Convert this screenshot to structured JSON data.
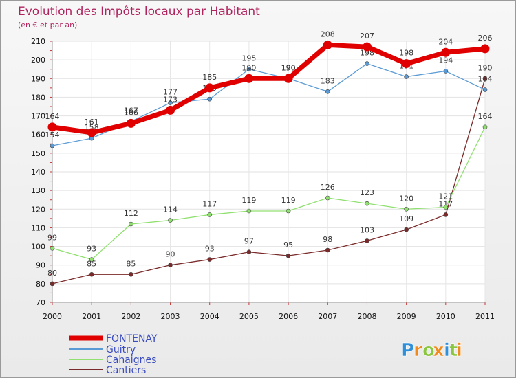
{
  "chart_data": {
    "type": "line",
    "title": "Evolution des Impôts locaux par Habitant",
    "subtitle": "(en € et par an)",
    "x": [
      "2000",
      "2001",
      "2002",
      "2003",
      "2004",
      "2005",
      "2006",
      "2007",
      "2008",
      "2009",
      "2010",
      "2011"
    ],
    "ylim": [
      70,
      210
    ],
    "yticks": [
      70,
      80,
      90,
      100,
      110,
      120,
      130,
      140,
      150,
      160,
      170,
      180,
      190,
      200,
      210
    ],
    "series": [
      {
        "name": "FONTENAY",
        "color": "#e00000",
        "values": [
          164,
          161,
          166,
          173,
          185,
          190,
          190,
          208,
          207,
          198,
          204,
          206
        ]
      },
      {
        "name": "Guitry",
        "color": "#5b9bd5",
        "values": [
          154,
          158,
          167,
          177,
          179,
          195,
          190,
          183,
          198,
          191,
          194,
          184
        ]
      },
      {
        "name": "Cahaignes",
        "color": "#90e070",
        "values": [
          99,
          93,
          112,
          114,
          117,
          119,
          119,
          126,
          123,
          120,
          121,
          164
        ]
      },
      {
        "name": "Cantiers",
        "color": "#7a2a2a",
        "values": [
          80,
          85,
          85,
          90,
          93,
          97,
          95,
          98,
          103,
          109,
          117,
          190
        ]
      }
    ]
  },
  "brand": {
    "letters": [
      "P",
      "r",
      "o",
      "x",
      "i",
      "t",
      "i"
    ],
    "colors": [
      "#2f8fd8",
      "#f08a1c",
      "#8ac640",
      "#f08a1c",
      "#2f8fd8",
      "#8ac640",
      "#f08a1c"
    ]
  }
}
